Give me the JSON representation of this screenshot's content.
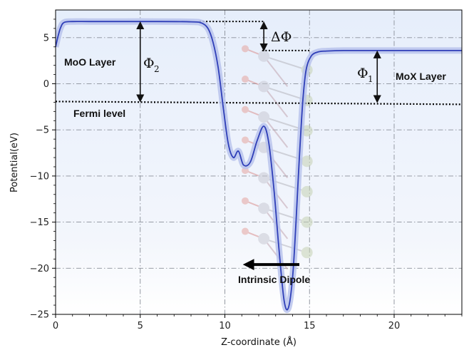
{
  "chart_data": {
    "type": "line",
    "title": "",
    "xlabel": "Z-coordinate (Å)",
    "ylabel": "Potential(eV)",
    "xlim": [
      0,
      24
    ],
    "ylim": [
      -25,
      8
    ],
    "xticks": [
      0,
      5,
      10,
      15,
      20
    ],
    "yticks": [
      5,
      0,
      -5,
      -10,
      -15,
      -20,
      -25
    ],
    "grid": true,
    "grid_style": "dash-dot",
    "series": [
      {
        "color": "#2f3fb8",
        "x": [
          0,
          0.15,
          0.3,
          0.5,
          1,
          2,
          4,
          6,
          8,
          8.6,
          9.0,
          9.3,
          9.6,
          9.9,
          10.2,
          10.5,
          10.8,
          11.1,
          11.5,
          11.9,
          12.3,
          12.6,
          12.9,
          13.2,
          13.5,
          13.75,
          14.0,
          14.2,
          14.4,
          14.6,
          14.8,
          15.1,
          15.5,
          16,
          17,
          19,
          21,
          24
        ],
        "y": [
          4.0,
          5.2,
          6.1,
          6.65,
          6.75,
          6.75,
          6.75,
          6.75,
          6.72,
          6.6,
          6.0,
          4.5,
          1.8,
          -2.5,
          -6.5,
          -8.0,
          -7.3,
          -8.8,
          -8.5,
          -6.2,
          -4.6,
          -6.5,
          -11.5,
          -18.0,
          -23.5,
          -24.3,
          -21.0,
          -15.0,
          -8.0,
          -2.0,
          1.5,
          3.0,
          3.45,
          3.55,
          3.6,
          3.6,
          3.6,
          3.6
        ]
      }
    ],
    "reference_lines": {
      "fermi_level_y": -2.0,
      "vacuum_left_y": 6.75,
      "vacuum_right_y": 3.6
    },
    "annotations": {
      "moo_layer": "MoO Layer",
      "mox_layer": "MoX Layer",
      "fermi_level": "Fermi level",
      "intrinsic_dipole": "Intrinsic Dipole",
      "phi2": "Φ",
      "phi2_sub": "2",
      "phi1": "Φ",
      "phi1_sub": "1",
      "delta_phi": "ΔΦ"
    }
  }
}
